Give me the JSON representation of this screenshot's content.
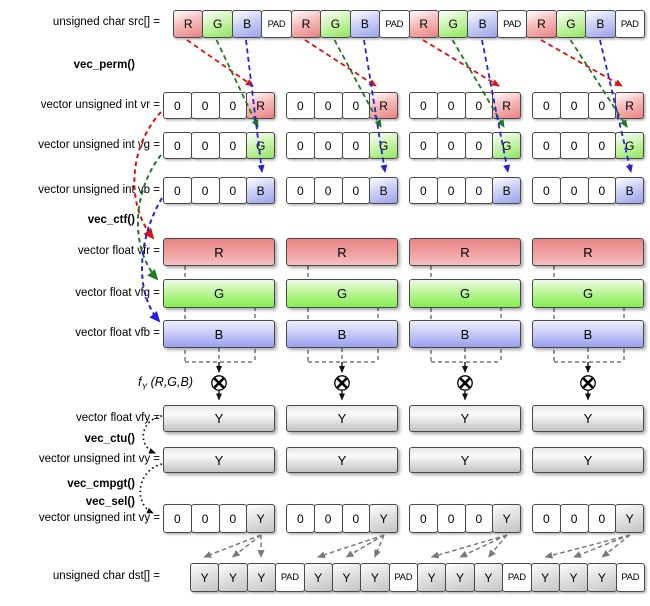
{
  "diagram": {
    "labels": {
      "src": "unsigned char src[] =",
      "vec_perm": "vec_perm()",
      "vr": "vector unsigned int vr =",
      "vg": "vector unsigned int vg =",
      "vb": "vector unsigned int vb =",
      "vec_ctf": "vec_ctf()",
      "vfr": "vector float vfr =",
      "vfg": "vector float vfg =",
      "vfb": "vector float vfb =",
      "fy_func": "f",
      "fy_sub": "Y",
      "fy_args": "(R,G,B)",
      "vfy": "vector float vfy =",
      "vec_ctu": "vec_ctu()",
      "vy": "vector unsigned int vy =",
      "vec_cmpgt": "vec_cmpgt()",
      "vec_sel": "vec_sel()",
      "vy2": "vector unsigned int vy =",
      "dst": "unsigned char dst[] ="
    },
    "src_row": {
      "cells": [
        "R",
        "G",
        "B",
        "PAD",
        "R",
        "G",
        "B",
        "PAD",
        "R",
        "G",
        "B",
        "PAD",
        "R",
        "G",
        "B",
        "PAD"
      ]
    },
    "vr_row": {
      "groups": 4,
      "cells": [
        "0",
        "0",
        "0",
        "R"
      ]
    },
    "vg_row": {
      "groups": 4,
      "cells": [
        "0",
        "0",
        "0",
        "G"
      ]
    },
    "vb_row": {
      "groups": 4,
      "cells": [
        "0",
        "0",
        "0",
        "B"
      ]
    },
    "vfr_row": {
      "blocks": [
        "R",
        "R",
        "R",
        "R"
      ]
    },
    "vfg_row": {
      "blocks": [
        "G",
        "G",
        "G",
        "G"
      ]
    },
    "vfb_row": {
      "blocks": [
        "B",
        "B",
        "B",
        "B"
      ]
    },
    "vfy_row": {
      "blocks": [
        "Y",
        "Y",
        "Y",
        "Y"
      ]
    },
    "vy_row": {
      "blocks": [
        "Y",
        "Y",
        "Y",
        "Y"
      ]
    },
    "vy_packed_row": {
      "groups": 4,
      "cells": [
        "0",
        "0",
        "0",
        "Y"
      ]
    },
    "dst_row": {
      "cells": [
        "Y",
        "Y",
        "Y",
        "PAD",
        "Y",
        "Y",
        "Y",
        "PAD",
        "Y",
        "Y",
        "Y",
        "PAD",
        "Y",
        "Y",
        "Y",
        "PAD"
      ]
    },
    "icons": {
      "multiply": "circle-x-multiply"
    },
    "colors": {
      "red_cell": "#ea8181",
      "green_cell": "#8fe55e",
      "blue_cell": "#9aa2ec",
      "gray_cell": "#c4c4c4",
      "arrow_red": "#dd1111",
      "arrow_green": "#1e7a1e",
      "arrow_blue": "#2222dd",
      "arrow_black": "#111111",
      "arrow_gray": "#7a7a7a"
    }
  }
}
